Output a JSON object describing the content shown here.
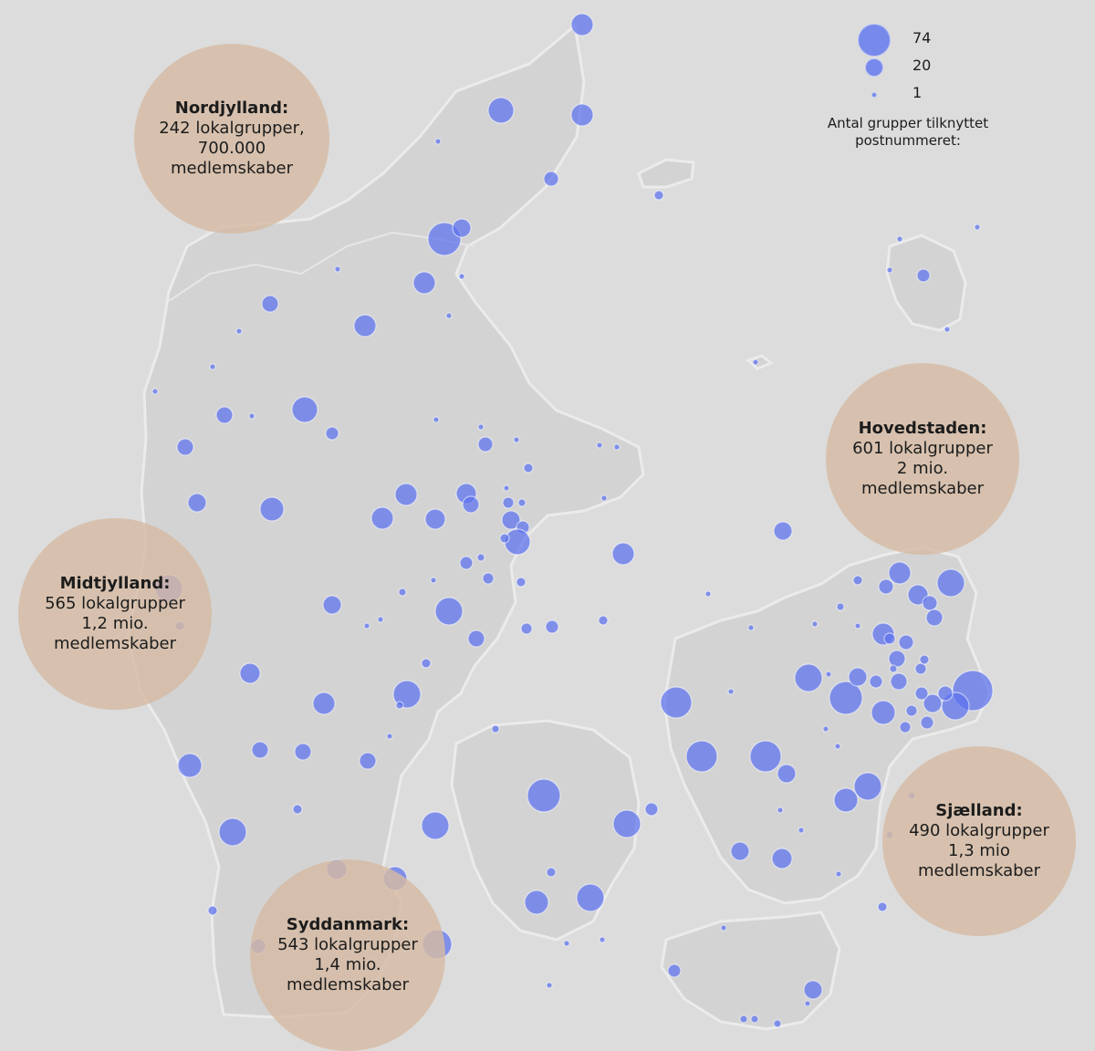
{
  "legend": {
    "sizes": [
      {
        "value": 74,
        "label": "74"
      },
      {
        "value": 20,
        "label": "20"
      },
      {
        "value": 1,
        "label": "1"
      }
    ],
    "caption_lines": [
      "Antal grupper tilknyttet",
      "postnummeret:"
    ]
  },
  "regions": [
    {
      "id": "nordjylland",
      "name": "Nordjylland:",
      "lines": [
        "242 lokalgrupper,",
        "700.000",
        "medlemskaber"
      ]
    },
    {
      "id": "midtjylland",
      "name": "Midtjylland:",
      "lines": [
        "565 lokalgrupper",
        "1,2 mio.",
        "medlemskaber"
      ]
    },
    {
      "id": "syddanmark",
      "name": "Syddanmark:",
      "lines": [
        "543 lokalgrupper",
        "1,4 mio.",
        "medlemskaber"
      ]
    },
    {
      "id": "hovedstaden",
      "name": "Hovedstaden:",
      "lines": [
        "601 lokalgrupper",
        "2 mio.",
        "medlemskaber"
      ]
    },
    {
      "id": "sjaelland",
      "name": "Sjælland:",
      "lines": [
        "490 lokalgrupper",
        "1,3 mio",
        "medlemskaber"
      ]
    }
  ],
  "colors": {
    "background": "#dcdcdc",
    "land": "#d3d3d3",
    "dot": "#5b72ee",
    "region_circle": "#d5bba3"
  }
}
